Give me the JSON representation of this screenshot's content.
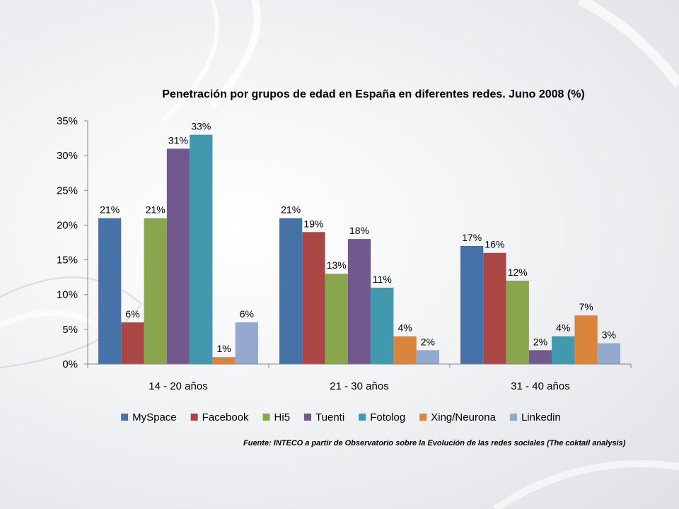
{
  "chart_data": {
    "type": "bar",
    "title": "Penetración por grupos de edad en España en diferentes redes. Juno 2008 (%)",
    "categories": [
      "14 - 20 años",
      "21 - 30 años",
      "31 - 40 años"
    ],
    "series": [
      {
        "name": "MySpace",
        "color": "#4572a7",
        "values": [
          21,
          21,
          17
        ],
        "labels": [
          "21%",
          "21%",
          "17%"
        ]
      },
      {
        "name": "Facebook",
        "color": "#aa4643",
        "values": [
          6,
          19,
          16
        ],
        "labels": [
          "6%",
          "19%",
          "16%"
        ]
      },
      {
        "name": "Hi5",
        "color": "#89a54e",
        "values": [
          21,
          13,
          12
        ],
        "labels": [
          "21%",
          "13%",
          "12%"
        ]
      },
      {
        "name": "Tuenti",
        "color": "#71588f",
        "values": [
          31,
          18,
          2
        ],
        "labels": [
          "31%",
          "18%",
          "2%"
        ]
      },
      {
        "name": "Fotolog",
        "color": "#4198af",
        "values": [
          33,
          11,
          4
        ],
        "labels": [
          "33%",
          "11%",
          "4%"
        ]
      },
      {
        "name": "Xing/Neurona",
        "color": "#db843d",
        "values": [
          1,
          4,
          7
        ],
        "labels": [
          "1%",
          "4%",
          "7%"
        ]
      },
      {
        "name": "Linkedin",
        "color": "#93a9cf",
        "values": [
          6,
          2,
          3
        ],
        "labels": [
          "6%",
          "2%",
          "3%"
        ]
      }
    ],
    "ylim": [
      0,
      35
    ],
    "yticks": [
      0,
      5,
      10,
      15,
      20,
      25,
      30,
      35
    ],
    "ytick_labels": [
      "0%",
      "5%",
      "10%",
      "15%",
      "20%",
      "25%",
      "30%",
      "35%"
    ],
    "xlabel": "",
    "ylabel": "",
    "grid": false,
    "legend_position": "bottom"
  },
  "source": "Fuente: INTECO a partir de  Observatorio sobre la Evolución de las redes sociales (The coktail analysis)"
}
